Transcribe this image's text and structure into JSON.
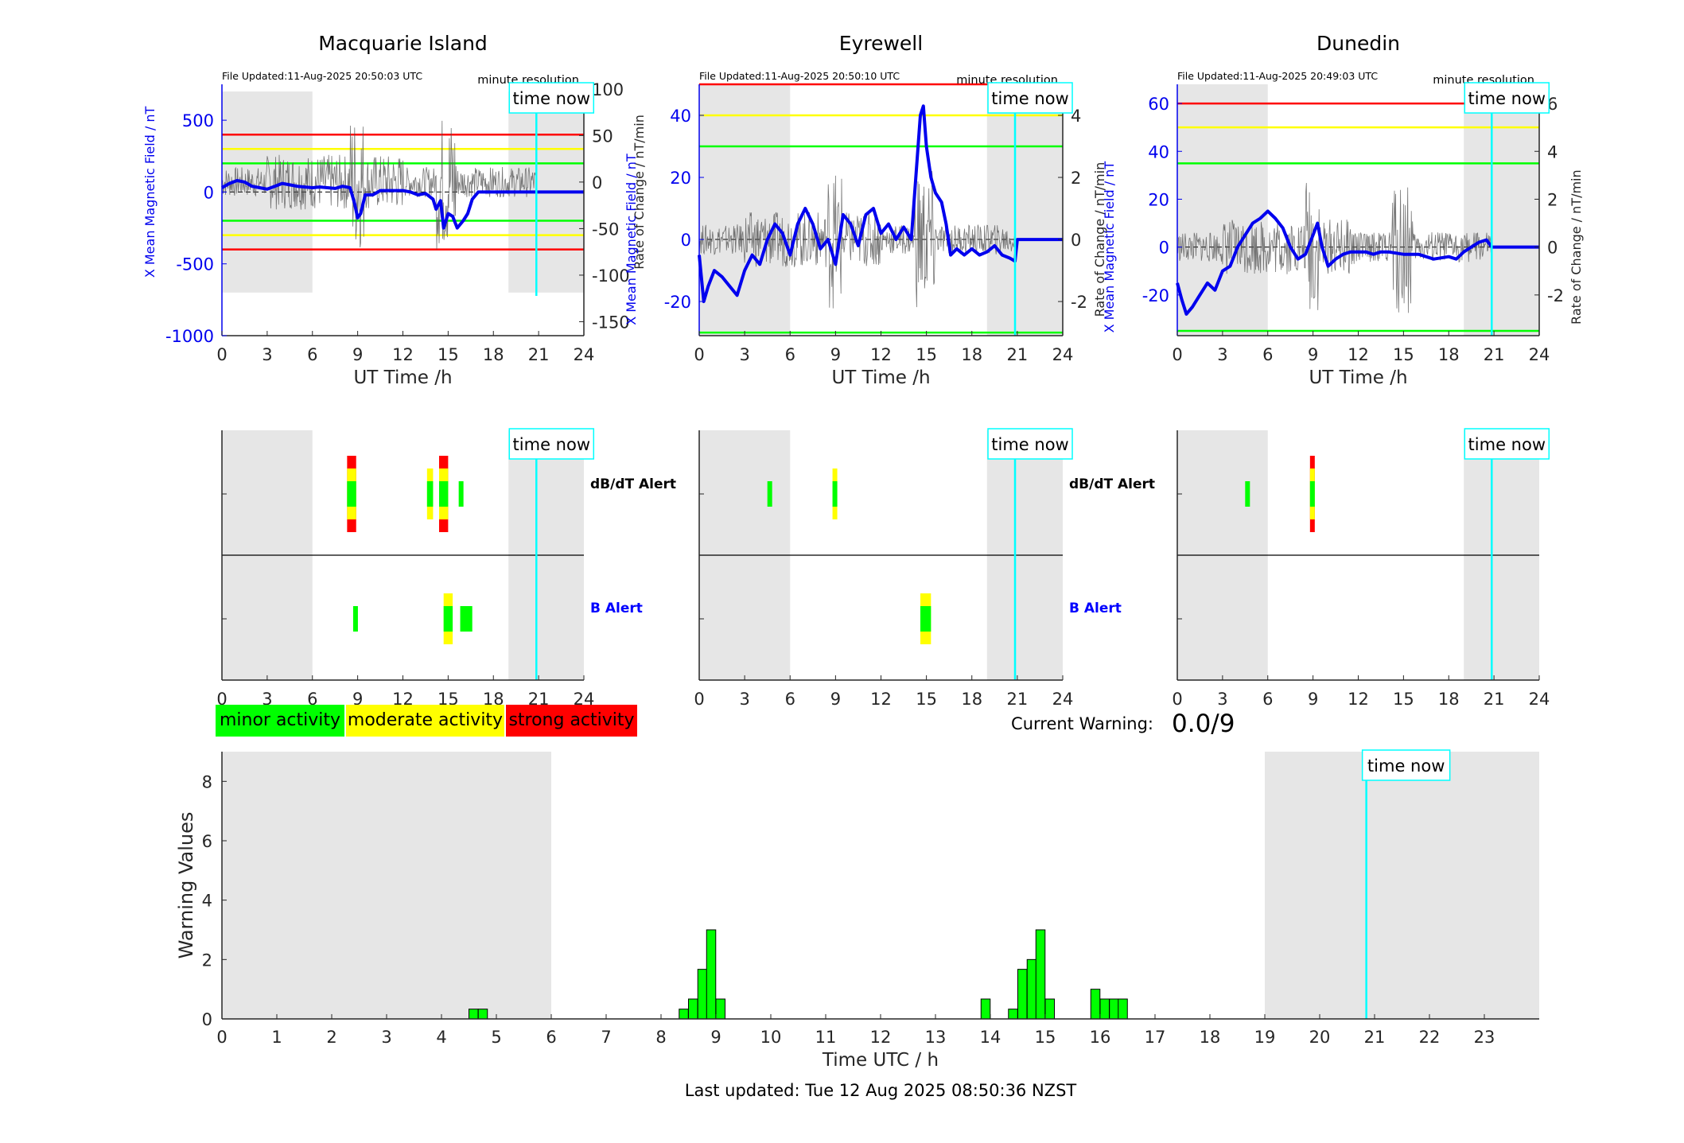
{
  "colors": {
    "minor": "#00ff00",
    "moderate": "#ffff00",
    "strong": "#ff0000",
    "b_field": "#0000ee",
    "now_line": "#00ffff",
    "night_shade": "#e6e6e6",
    "alert_label_b": "#0000ff"
  },
  "labels": {
    "time_now": "time now",
    "ut_time": "UT Time /h",
    "x_field": "X Mean Magnetic Field / nT",
    "rate": "Rate of Change / nT/min",
    "minute_resolution": "minute resolution",
    "dbdt_alert": "dB/dT Alert",
    "b_alert": "B Alert",
    "minor": "minor activity",
    "moderate": "moderate activity",
    "strong": "strong activity",
    "current_warning_label": "Current Warning:",
    "current_warning_value": "0.0/9",
    "warning_values": "Warning Values",
    "time_utc": "Time UTC / h",
    "last_updated": "Last updated: Tue 12 Aug 2025 08:50:36 NZST"
  },
  "time_now_hours": 20.85,
  "night_shading_hours": [
    [
      0,
      6
    ],
    [
      19,
      24
    ]
  ],
  "chart_data": [
    {
      "type": "line",
      "title": "Macquarie Island",
      "file_updated": "File Updated:11-Aug-2025 20:50:03 UTC",
      "xlabel": "UT Time /h",
      "ylabel": "X Mean Magnetic Field / nT",
      "y2label": "Rate of Change / nT/min",
      "xlim": [
        0,
        24
      ],
      "xticks": [
        0,
        3,
        6,
        9,
        12,
        15,
        18,
        21,
        24
      ],
      "ylim": [
        -1000,
        750
      ],
      "yticks": [
        -1000,
        -500,
        0,
        500
      ],
      "y2lim": [
        -165,
        105
      ],
      "y2ticks": [
        -150,
        -100,
        -50,
        0,
        50,
        100
      ],
      "thresholds": {
        "red": 400,
        "yellow": 300,
        "green": 200
      },
      "series": [
        {
          "name": "",
          "x": [
            0,
            0.5,
            1,
            1.5,
            2,
            2.5,
            3,
            3.5,
            4,
            4.5,
            5,
            5.5,
            6,
            6.5,
            7,
            7.5,
            8,
            8.5,
            8.8,
            9,
            9.2,
            9.5,
            10,
            10.5,
            11,
            11.5,
            12,
            12.5,
            13,
            13.5,
            14,
            14.2,
            14.5,
            14.7,
            15,
            15.3,
            15.6,
            16,
            16.3,
            16.6,
            17,
            17.5,
            18,
            18.5,
            19,
            19.5,
            20,
            20.5,
            20.85,
            21,
            22,
            23,
            24
          ],
          "y": [
            30,
            60,
            80,
            70,
            40,
            30,
            20,
            40,
            60,
            50,
            40,
            35,
            30,
            35,
            30,
            25,
            40,
            30,
            -80,
            -180,
            -150,
            -20,
            -20,
            10,
            10,
            10,
            10,
            0,
            -20,
            -10,
            -50,
            -120,
            -60,
            -250,
            -150,
            -170,
            -250,
            -200,
            -150,
            -50,
            0,
            0,
            0,
            0,
            0,
            0,
            0,
            0,
            0,
            0,
            0,
            0,
            0
          ]
        }
      ]
    },
    {
      "type": "line",
      "title": "Eyrewell",
      "file_updated": "File Updated:11-Aug-2025 20:50:10 UTC",
      "xlabel": "UT Time /h",
      "ylabel": "X Mean Magnetic Field / nT",
      "y2label": "Rate of Change / nT/min",
      "xlim": [
        0,
        24
      ],
      "xticks": [
        0,
        3,
        6,
        9,
        12,
        15,
        18,
        21,
        24
      ],
      "ylim": [
        -31,
        50
      ],
      "yticks": [
        -20,
        0,
        20,
        40
      ],
      "y2lim": [
        -3.1,
        5.0
      ],
      "y2ticks": [
        -2,
        0,
        2,
        4
      ],
      "thresholds": {
        "red": 50,
        "yellow": 40,
        "green": 30
      },
      "series": [
        {
          "name": "",
          "x": [
            0,
            0.3,
            0.6,
            1,
            1.5,
            2,
            2.5,
            3,
            3.5,
            4,
            4.5,
            5,
            5.5,
            6,
            6.5,
            7,
            7.5,
            8,
            8.5,
            9,
            9.5,
            10,
            10.5,
            11,
            11.5,
            12,
            12.5,
            13,
            13.5,
            14,
            14.3,
            14.6,
            14.8,
            15,
            15.3,
            15.6,
            16,
            16.3,
            16.6,
            17,
            17.5,
            18,
            18.5,
            19,
            19.5,
            20,
            20.5,
            20.85,
            21,
            22,
            23,
            24
          ],
          "y": [
            -5,
            -20,
            -15,
            -10,
            -12,
            -15,
            -18,
            -10,
            -5,
            -8,
            0,
            5,
            2,
            -5,
            5,
            10,
            5,
            -3,
            0,
            -8,
            8,
            5,
            -2,
            8,
            10,
            2,
            5,
            0,
            4,
            0,
            20,
            40,
            43,
            30,
            20,
            15,
            12,
            5,
            -5,
            -3,
            -5,
            -3,
            -5,
            -4,
            -2,
            -5,
            -6,
            -7,
            0,
            0,
            0,
            0
          ]
        }
      ]
    },
    {
      "type": "line",
      "title": "Dunedin",
      "file_updated": "File Updated:11-Aug-2025 20:49:03 UTC",
      "xlabel": "UT Time /h",
      "ylabel": "X Mean Magnetic Field / nT",
      "y2label": "Rate of Change / nT/min",
      "xlim": [
        0,
        24
      ],
      "xticks": [
        0,
        3,
        6,
        9,
        12,
        15,
        18,
        21,
        24
      ],
      "ylim": [
        -37,
        68
      ],
      "yticks": [
        -20,
        0,
        20,
        40,
        60
      ],
      "y2lim": [
        -3.7,
        6.8
      ],
      "y2ticks": [
        -2,
        0,
        2,
        4,
        6
      ],
      "thresholds": {
        "red": 60,
        "yellow": 50,
        "green": 35
      },
      "series": [
        {
          "name": "",
          "x": [
            0,
            0.3,
            0.6,
            1,
            1.5,
            2,
            2.5,
            3,
            3.5,
            4,
            4.5,
            5,
            5.5,
            6,
            6.5,
            7,
            7.5,
            8,
            8.5,
            9,
            9.3,
            9.6,
            10,
            10.5,
            11,
            11.5,
            12,
            12.5,
            13,
            13.5,
            14,
            15,
            16,
            17,
            18,
            18.5,
            19,
            19.5,
            20,
            20.5,
            20.85,
            21,
            22,
            23,
            24
          ],
          "y": [
            -15,
            -22,
            -28,
            -25,
            -20,
            -15,
            -18,
            -10,
            -8,
            0,
            5,
            10,
            12,
            15,
            12,
            8,
            0,
            -5,
            -3,
            5,
            10,
            0,
            -8,
            -5,
            -3,
            -2,
            -2,
            -2,
            -3,
            -2,
            -2,
            -3,
            -3,
            -5,
            -4,
            -5,
            -2,
            0,
            2,
            3,
            0,
            0,
            0,
            0,
            0
          ]
        }
      ]
    },
    {
      "type": "heatmap",
      "title": "",
      "rows": [
        "dB/dT Alert",
        "B Alert"
      ],
      "xlim": [
        0,
        24
      ],
      "xticks": [
        0,
        3,
        6,
        9,
        12,
        15,
        18,
        21,
        24
      ],
      "dbdt": [
        [
          8.3,
          8.9,
          3
        ],
        [
          13.6,
          14.0,
          2
        ],
        [
          14.4,
          15.0,
          3
        ],
        [
          15.7,
          16.0,
          1
        ]
      ],
      "b": [
        [
          8.7,
          9.0,
          1
        ],
        [
          14.7,
          15.3,
          2
        ],
        [
          15.8,
          16.6,
          1
        ]
      ]
    },
    {
      "type": "heatmap",
      "title": "",
      "rows": [
        "dB/dT Alert",
        "B Alert"
      ],
      "xlim": [
        0,
        24
      ],
      "xticks": [
        0,
        3,
        6,
        9,
        12,
        15,
        18,
        21,
        24
      ],
      "dbdt": [
        [
          4.5,
          4.8,
          1
        ],
        [
          8.8,
          9.1,
          2
        ]
      ],
      "b": [
        [
          14.6,
          15.3,
          2
        ]
      ]
    },
    {
      "type": "heatmap",
      "title": "",
      "rows": [
        "dB/dT Alert",
        "B Alert"
      ],
      "xlim": [
        0,
        24
      ],
      "xticks": [
        0,
        3,
        6,
        9,
        12,
        15,
        18,
        21,
        24
      ],
      "dbdt": [
        [
          4.5,
          4.8,
          1
        ],
        [
          8.8,
          9.1,
          3
        ]
      ],
      "b": []
    },
    {
      "type": "bar",
      "title": "",
      "xlabel": "Time UTC / h",
      "ylabel": "Warning Values",
      "xlim": [
        0,
        24
      ],
      "xticks": [
        0,
        1,
        2,
        3,
        4,
        5,
        6,
        7,
        8,
        9,
        10,
        11,
        12,
        13,
        14,
        15,
        16,
        17,
        18,
        19,
        20,
        21,
        22,
        23
      ],
      "ylim": [
        0,
        9
      ],
      "yticks": [
        0,
        2,
        4,
        6,
        8
      ],
      "bin_width": 0.1667,
      "x": [
        4.5,
        4.67,
        8.33,
        8.5,
        8.67,
        8.83,
        9.0,
        13.83,
        14.33,
        14.5,
        14.67,
        14.83,
        15.0,
        15.83,
        16.0,
        16.17,
        16.33
      ],
      "values": [
        0.33,
        0.33,
        0.33,
        0.67,
        1.67,
        3.0,
        0.67,
        0.67,
        0.33,
        1.67,
        2.0,
        3.0,
        0.67,
        1.0,
        0.67,
        0.67,
        0.67
      ]
    }
  ]
}
